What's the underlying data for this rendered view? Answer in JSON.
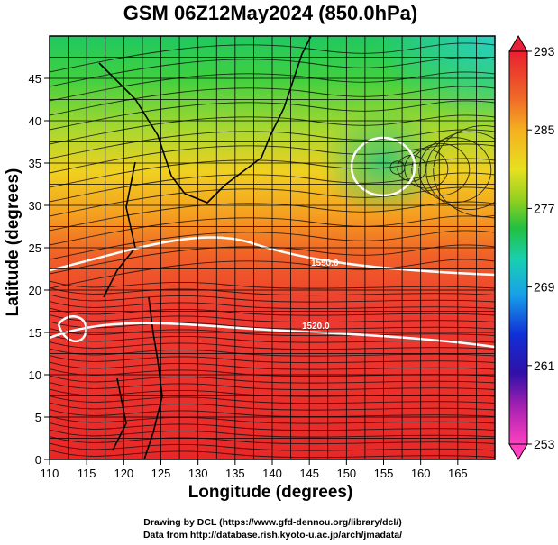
{
  "title": "GSM 06Z12May2024 (850.0hPa)",
  "axes": {
    "xlabel": "Longitude (degrees)",
    "ylabel": "Latitude  (degrees)",
    "xticks": [
      "110",
      "115",
      "120",
      "125",
      "130",
      "135",
      "140",
      "145",
      "150",
      "155",
      "160",
      "165"
    ],
    "yticks": [
      "0",
      "5",
      "10",
      "15",
      "20",
      "25",
      "30",
      "35",
      "40",
      "45"
    ],
    "xlim": [
      110,
      170
    ],
    "ylim": [
      0,
      50
    ]
  },
  "colorbar": {
    "labels": [
      "293",
      "285",
      "277",
      "269",
      "261",
      "253"
    ],
    "colors": [
      "#e8203a",
      "#f2a030",
      "#ffe030",
      "#9ad030",
      "#22c030",
      "#19d0b0",
      "#1aa0e8",
      "#1030d8",
      "#3010b0",
      "#c020c0",
      "#ff40c0"
    ]
  },
  "contour_labels": [
    "1520.0",
    "1550.0"
  ],
  "credits": {
    "line1": "Drawing by DCL (https://www.gfd-dennou.org/library/dcl/)",
    "line2": "Data from http://database.rish.kyoto-u.ac.jp/arch/jmadata/"
  }
}
